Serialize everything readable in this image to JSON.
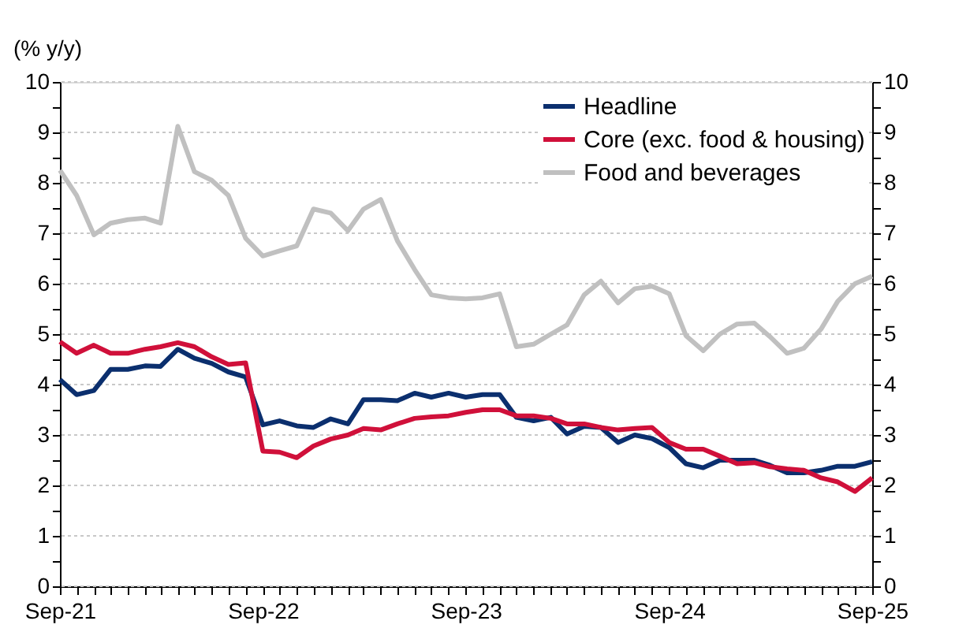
{
  "chart_data": {
    "type": "line",
    "ylabel": "(% y/y)",
    "x": [
      "2021-09",
      "2021-10",
      "2021-11",
      "2021-12",
      "2022-01",
      "2022-02",
      "2022-03",
      "2022-04",
      "2022-05",
      "2022-06",
      "2022-07",
      "2022-08",
      "2022-09",
      "2022-10",
      "2022-11",
      "2022-12",
      "2023-01",
      "2023-02",
      "2023-03",
      "2023-04",
      "2023-05",
      "2023-06",
      "2023-07",
      "2023-08",
      "2023-09",
      "2023-10",
      "2023-11",
      "2023-12",
      "2024-01",
      "2024-02",
      "2024-03",
      "2024-04",
      "2024-05",
      "2024-06",
      "2024-07",
      "2024-08",
      "2024-09",
      "2024-10",
      "2024-11",
      "2024-12",
      "2025-01",
      "2025-02",
      "2025-03",
      "2025-04",
      "2025-05",
      "2025-06",
      "2025-07",
      "2025-08",
      "2025-09"
    ],
    "series": [
      {
        "name": "Headline",
        "color": "#0b2f6e",
        "values": [
          4.1,
          3.8,
          3.88,
          4.3,
          4.3,
          4.37,
          4.36,
          4.7,
          4.52,
          4.42,
          4.25,
          4.15,
          3.2,
          3.28,
          3.18,
          3.15,
          3.32,
          3.22,
          3.7,
          3.7,
          3.68,
          3.83,
          3.75,
          3.83,
          3.75,
          3.8,
          3.8,
          3.35,
          3.28,
          3.35,
          3.02,
          3.17,
          3.15,
          2.85,
          3.0,
          2.93,
          2.75,
          2.43,
          2.35,
          2.5,
          2.5,
          2.5,
          2.4,
          2.25,
          2.25,
          2.3,
          2.38,
          2.38,
          2.47
        ]
      },
      {
        "name": "Core (exc. food & housing)",
        "color": "#d0103a",
        "values": [
          4.85,
          4.62,
          4.78,
          4.62,
          4.62,
          4.7,
          4.75,
          4.83,
          4.75,
          4.55,
          4.4,
          4.43,
          2.68,
          2.66,
          2.55,
          2.78,
          2.92,
          3.0,
          3.13,
          3.1,
          3.22,
          3.33,
          3.36,
          3.38,
          3.45,
          3.5,
          3.5,
          3.38,
          3.38,
          3.33,
          3.22,
          3.22,
          3.15,
          3.1,
          3.13,
          3.15,
          2.85,
          2.72,
          2.72,
          2.58,
          2.43,
          2.45,
          2.37,
          2.33,
          2.3,
          2.15,
          2.07,
          1.88,
          2.15
        ]
      },
      {
        "name": "Food and beverages",
        "color": "#c0c0c0",
        "values": [
          8.25,
          7.75,
          6.97,
          7.2,
          7.27,
          7.3,
          7.2,
          9.12,
          8.22,
          8.05,
          7.75,
          6.9,
          6.55,
          6.65,
          6.75,
          7.48,
          7.4,
          7.05,
          7.48,
          7.67,
          6.85,
          6.28,
          5.78,
          5.72,
          5.7,
          5.72,
          5.8,
          4.75,
          4.8,
          5.0,
          5.18,
          5.78,
          6.05,
          5.62,
          5.9,
          5.95,
          5.8,
          4.97,
          4.67,
          5.0,
          5.2,
          5.22,
          4.95,
          4.62,
          4.72,
          5.1,
          5.65,
          6.0,
          6.15
        ]
      }
    ],
    "xlim": [
      "2021-09",
      "2025-09"
    ],
    "xticks": [
      {
        "value": "2021-09",
        "label": "Sep-21"
      },
      {
        "value": "2021-10",
        "label": null
      },
      {
        "value": "2021-11",
        "label": null
      },
      {
        "value": "2021-12",
        "label": null
      },
      {
        "value": "2022-01",
        "label": null
      },
      {
        "value": "2022-02",
        "label": null
      },
      {
        "value": "2022-03",
        "label": null
      },
      {
        "value": "2022-04",
        "label": null
      },
      {
        "value": "2022-05",
        "label": null
      },
      {
        "value": "2022-06",
        "label": null
      },
      {
        "value": "2022-07",
        "label": null
      },
      {
        "value": "2022-08",
        "label": null
      },
      {
        "value": "2022-09",
        "label": "Sep-22"
      },
      {
        "value": "2022-10",
        "label": null
      },
      {
        "value": "2022-11",
        "label": null
      },
      {
        "value": "2022-12",
        "label": null
      },
      {
        "value": "2023-01",
        "label": null
      },
      {
        "value": "2023-02",
        "label": null
      },
      {
        "value": "2023-03",
        "label": null
      },
      {
        "value": "2023-04",
        "label": null
      },
      {
        "value": "2023-05",
        "label": null
      },
      {
        "value": "2023-06",
        "label": null
      },
      {
        "value": "2023-07",
        "label": null
      },
      {
        "value": "2023-08",
        "label": null
      },
      {
        "value": "2023-09",
        "label": "Sep-23"
      },
      {
        "value": "2023-10",
        "label": null
      },
      {
        "value": "2023-11",
        "label": null
      },
      {
        "value": "2023-12",
        "label": null
      },
      {
        "value": "2024-01",
        "label": null
      },
      {
        "value": "2024-02",
        "label": null
      },
      {
        "value": "2024-03",
        "label": null
      },
      {
        "value": "2024-04",
        "label": null
      },
      {
        "value": "2024-05",
        "label": null
      },
      {
        "value": "2024-06",
        "label": null
      },
      {
        "value": "2024-07",
        "label": null
      },
      {
        "value": "2024-08",
        "label": null
      },
      {
        "value": "2024-09",
        "label": "Sep-24"
      },
      {
        "value": "2024-10",
        "label": null
      },
      {
        "value": "2024-11",
        "label": null
      },
      {
        "value": "2024-12",
        "label": null
      },
      {
        "value": "2025-01",
        "label": null
      },
      {
        "value": "2025-02",
        "label": null
      },
      {
        "value": "2025-03",
        "label": null
      },
      {
        "value": "2025-04",
        "label": null
      },
      {
        "value": "2025-05",
        "label": null
      },
      {
        "value": "2025-06",
        "label": null
      },
      {
        "value": "2025-07",
        "label": null
      },
      {
        "value": "2025-08",
        "label": null
      },
      {
        "value": "2025-09",
        "label": "Sep-25"
      }
    ],
    "ylim": [
      0,
      10
    ],
    "yticks": [
      0,
      {
        "value": 0.5,
        "label": null
      },
      1,
      {
        "value": 1.5,
        "label": null
      },
      2,
      {
        "value": 2.5,
        "label": null
      },
      3,
      {
        "value": 3.5,
        "label": null
      },
      4,
      {
        "value": 4.5,
        "label": null
      },
      5,
      {
        "value": 5.5,
        "label": null
      },
      6,
      {
        "value": 6.5,
        "label": null
      },
      7,
      {
        "value": 7.5,
        "label": null
      },
      8,
      {
        "value": 8.5,
        "label": null
      },
      9,
      {
        "value": 9.5,
        "label": null
      },
      10
    ],
    "y2lim": [
      0,
      10
    ],
    "y2ticks": [
      0,
      {
        "value": 0.5,
        "label": null
      },
      1,
      {
        "value": 1.5,
        "label": null
      },
      2,
      {
        "value": 2.5,
        "label": null
      },
      3,
      {
        "value": 3.5,
        "label": null
      },
      4,
      {
        "value": 4.5,
        "label": null
      },
      5,
      {
        "value": 5.5,
        "label": null
      },
      6,
      {
        "value": 6.5,
        "label": null
      },
      7,
      {
        "value": 7.5,
        "label": null
      },
      8,
      {
        "value": 8.5,
        "label": null
      },
      9,
      {
        "value": 9.5,
        "label": null
      },
      10
    ],
    "grid": "y",
    "legend": "top right",
    "marker": "none",
    "line_style": "solid"
  }
}
